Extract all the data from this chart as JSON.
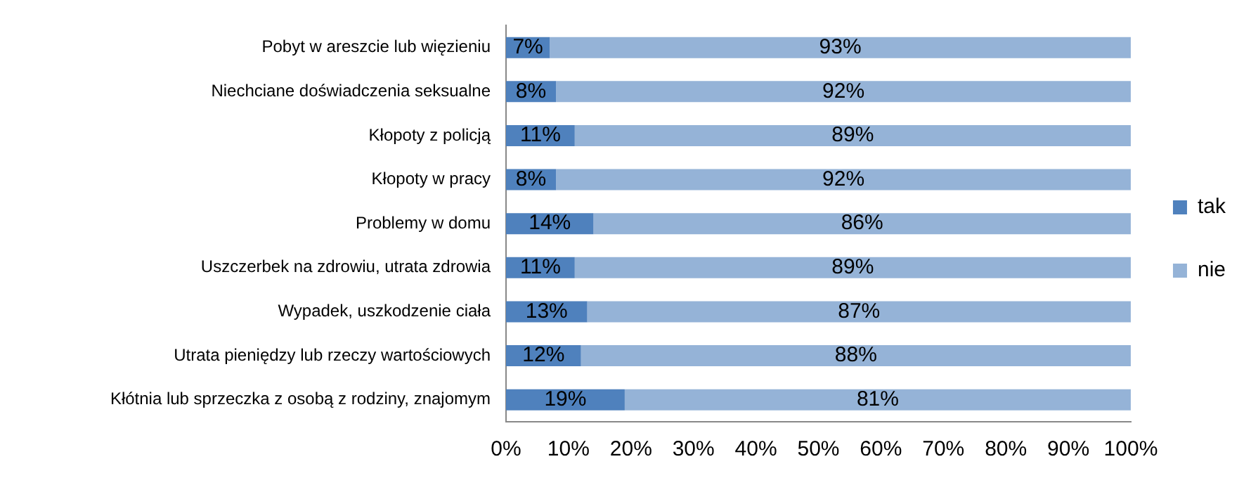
{
  "chart_data": {
    "type": "bar",
    "orientation": "horizontal",
    "stacked": true,
    "legend": "right",
    "grid": false,
    "categories": [
      "Pobyt w areszcie lub więzieniu",
      "Niechciane doświadczenia seksualne",
      "Kłopoty z policją",
      "Kłopoty w pracy",
      "Problemy w domu",
      "Uszczerbek na zdrowiu, utrata zdrowia",
      "Wypadek, uszkodzenie ciała",
      "Utrata pieniędzy lub rzeczy wartościowych",
      "Kłótnia lub sprzeczka z osobą z rodziny, znajomym"
    ],
    "series": [
      {
        "name": "tak",
        "color": "#4f81bd",
        "values": [
          7,
          8,
          11,
          8,
          14,
          11,
          13,
          12,
          19
        ],
        "value_labels": [
          "7%",
          "8%",
          "11%",
          "8%",
          "14%",
          "11%",
          "13%",
          "12%",
          "19%"
        ]
      },
      {
        "name": "nie",
        "color": "#95b3d7",
        "values": [
          93,
          92,
          89,
          92,
          86,
          89,
          87,
          88,
          81
        ],
        "value_labels": [
          "93%",
          "92%",
          "89%",
          "92%",
          "86%",
          "89%",
          "87%",
          "88%",
          "81%"
        ]
      }
    ],
    "xlim": [
      0,
      100
    ],
    "xticks": [
      {
        "value": 0,
        "label": "0%"
      },
      {
        "value": 10,
        "label": "10%"
      },
      {
        "value": 20,
        "label": "20%"
      },
      {
        "value": 30,
        "label": "30%"
      },
      {
        "value": 40,
        "label": "40%"
      },
      {
        "value": 50,
        "label": "50%"
      },
      {
        "value": 60,
        "label": "60%"
      },
      {
        "value": 70,
        "label": "70%"
      },
      {
        "value": 80,
        "label": "80%"
      },
      {
        "value": 90,
        "label": "90%"
      },
      {
        "value": 100,
        "label": "100%"
      }
    ]
  }
}
